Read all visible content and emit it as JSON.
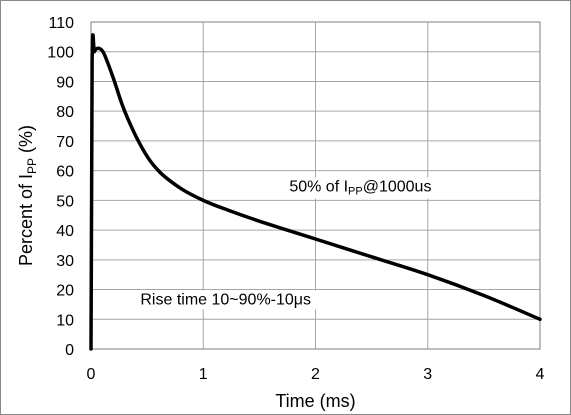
{
  "chart_data": {
    "type": "line",
    "title": "",
    "xlabel": "Time (ms)",
    "ylabel": {
      "prefix": "Percent of I",
      "subscript": "PP",
      "suffix": " (%)"
    },
    "xlim": [
      0,
      4
    ],
    "ylim": [
      0,
      110
    ],
    "xticks": [
      0,
      1,
      2,
      3,
      4
    ],
    "yticks": [
      0,
      10,
      20,
      30,
      40,
      50,
      60,
      70,
      80,
      90,
      100,
      110
    ],
    "grid": true,
    "legend": "none",
    "colors": {
      "line": "#000000",
      "grid": "#a6a6a6",
      "frame": "#7f7f7f"
    },
    "series": [
      {
        "x": [
          0,
          0.01,
          0.03,
          0.05,
          0.08,
          0.12,
          0.2,
          0.3,
          0.45,
          0.6,
          0.8,
          1.0,
          1.2,
          1.5,
          2.0,
          2.5,
          3.0,
          3.5,
          4.0
        ],
        "values": [
          0,
          97,
          100,
          101,
          101,
          99,
          91,
          80,
          68,
          60,
          54,
          50,
          47,
          43,
          37,
          31,
          25,
          18,
          10
        ]
      }
    ],
    "annotations": [
      {
        "text_parts": [
          "50% of I",
          "PP",
          "@1000us"
        ],
        "at": {
          "x": 2.4,
          "y": 55
        }
      },
      {
        "text_parts": [
          "Rise time 10~90%-10",
          "μ",
          "s"
        ],
        "at": {
          "x": 1.2,
          "y": 17
        }
      }
    ]
  }
}
